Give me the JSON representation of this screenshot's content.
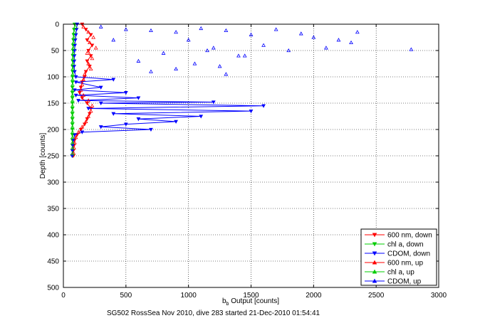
{
  "figure": {
    "caption": "SG502 RossSea Nov 2010, dive 283 started 21-Dec-2010 01:54:41"
  },
  "chart_data": {
    "type": "line",
    "title": "",
    "xlabel_main": "b",
    "xlabel_sub": "b",
    "xlabel_rest": " Output [counts]",
    "ylabel": "Depth [counts]",
    "xlim": [
      0,
      3000
    ],
    "ylim": [
      0,
      500
    ],
    "y_reversed": true,
    "grid": true,
    "legend_position": "bottom-right",
    "x_ticks": [
      0,
      500,
      1000,
      1500,
      2000,
      2500,
      3000
    ],
    "y_ticks": [
      0,
      50,
      100,
      150,
      200,
      250,
      300,
      350,
      400,
      450,
      500
    ],
    "x_tick_labels": [
      "0",
      "500",
      "1000",
      "1500",
      "2000",
      "2500",
      "3000"
    ],
    "y_tick_labels": [
      "0",
      "50",
      "100",
      "150",
      "200",
      "250",
      "300",
      "350",
      "400",
      "450",
      "500"
    ],
    "series": [
      {
        "name": "600 nm, down",
        "color": "#ff0000",
        "marker": "triangle-down",
        "line": true,
        "points": [
          [
            150,
            0
          ],
          [
            180,
            10
          ],
          [
            220,
            20
          ],
          [
            190,
            30
          ],
          [
            230,
            40
          ],
          [
            200,
            50
          ],
          [
            220,
            60
          ],
          [
            190,
            70
          ],
          [
            210,
            80
          ],
          [
            180,
            90
          ],
          [
            170,
            100
          ],
          [
            150,
            110
          ],
          [
            140,
            120
          ],
          [
            130,
            130
          ],
          [
            150,
            140
          ],
          [
            190,
            150
          ],
          [
            220,
            160
          ],
          [
            210,
            170
          ],
          [
            190,
            180
          ],
          [
            170,
            190
          ],
          [
            140,
            200
          ],
          [
            110,
            210
          ],
          [
            90,
            220
          ],
          [
            85,
            230
          ],
          [
            80,
            240
          ],
          [
            80,
            250
          ]
        ]
      },
      {
        "name": "chl a, down",
        "color": "#00cc00",
        "marker": "triangle-down",
        "line": true,
        "points": [
          [
            90,
            0
          ],
          [
            85,
            10
          ],
          [
            82,
            20
          ],
          [
            80,
            30
          ],
          [
            78,
            40
          ],
          [
            77,
            50
          ],
          [
            76,
            60
          ],
          [
            75,
            70
          ],
          [
            74,
            80
          ],
          [
            74,
            90
          ],
          [
            73,
            100
          ],
          [
            73,
            110
          ],
          [
            72,
            120
          ],
          [
            72,
            130
          ],
          [
            72,
            140
          ],
          [
            72,
            150
          ],
          [
            72,
            160
          ],
          [
            72,
            170
          ],
          [
            72,
            180
          ],
          [
            72,
            190
          ],
          [
            72,
            200
          ],
          [
            72,
            210
          ],
          [
            72,
            220
          ],
          [
            72,
            230
          ],
          [
            72,
            240
          ],
          [
            72,
            250
          ]
        ]
      },
      {
        "name": "CDOM, down",
        "color": "#0000ff",
        "marker": "triangle-down",
        "line": true,
        "points": [
          [
            110,
            0
          ],
          [
            105,
            10
          ],
          [
            100,
            20
          ],
          [
            95,
            30
          ],
          [
            92,
            40
          ],
          [
            90,
            50
          ],
          [
            88,
            60
          ],
          [
            87,
            70
          ],
          [
            86,
            80
          ],
          [
            90,
            90
          ],
          [
            100,
            100
          ],
          [
            400,
            105
          ],
          [
            100,
            110
          ],
          [
            300,
            120
          ],
          [
            90,
            125
          ],
          [
            500,
            130
          ],
          [
            100,
            135
          ],
          [
            600,
            140
          ],
          [
            120,
            145
          ],
          [
            1200,
            148
          ],
          [
            300,
            150
          ],
          [
            1600,
            155
          ],
          [
            200,
            160
          ],
          [
            1500,
            165
          ],
          [
            400,
            170
          ],
          [
            1100,
            175
          ],
          [
            600,
            180
          ],
          [
            900,
            185
          ],
          [
            500,
            190
          ],
          [
            300,
            195
          ],
          [
            700,
            200
          ],
          [
            150,
            205
          ],
          [
            90,
            210
          ],
          [
            80,
            220
          ],
          [
            75,
            230
          ],
          [
            72,
            240
          ],
          [
            70,
            250
          ]
        ]
      },
      {
        "name": "600 nm, up",
        "color": "#ff0000",
        "marker": "triangle-up",
        "line": false,
        "points": [
          [
            160,
            5
          ],
          [
            200,
            15
          ],
          [
            240,
            25
          ],
          [
            210,
            35
          ],
          [
            260,
            45
          ],
          [
            190,
            55
          ],
          [
            230,
            65
          ],
          [
            200,
            75
          ],
          [
            220,
            85
          ],
          [
            170,
            95
          ],
          [
            160,
            105
          ],
          [
            150,
            115
          ],
          [
            140,
            125
          ],
          [
            160,
            135
          ],
          [
            200,
            145
          ],
          [
            230,
            155
          ],
          [
            220,
            165
          ],
          [
            200,
            175
          ],
          [
            180,
            185
          ],
          [
            150,
            195
          ],
          [
            120,
            205
          ],
          [
            100,
            215
          ],
          [
            90,
            225
          ],
          [
            85,
            235
          ],
          [
            82,
            245
          ]
        ]
      },
      {
        "name": "chl a, up",
        "color": "#00cc00",
        "marker": "triangle-up",
        "line": false,
        "points": [
          [
            95,
            5
          ],
          [
            88,
            15
          ],
          [
            84,
            25
          ],
          [
            81,
            35
          ],
          [
            79,
            45
          ],
          [
            78,
            55
          ],
          [
            77,
            65
          ],
          [
            76,
            75
          ],
          [
            75,
            85
          ],
          [
            75,
            95
          ],
          [
            74,
            105
          ],
          [
            74,
            115
          ],
          [
            73,
            125
          ],
          [
            73,
            135
          ],
          [
            73,
            145
          ],
          [
            73,
            155
          ],
          [
            73,
            165
          ],
          [
            73,
            175
          ],
          [
            73,
            185
          ],
          [
            73,
            195
          ],
          [
            73,
            205
          ],
          [
            73,
            215
          ],
          [
            73,
            225
          ],
          [
            73,
            235
          ],
          [
            73,
            245
          ]
        ]
      },
      {
        "name": "CDOM, up",
        "color": "#0000ff",
        "marker": "triangle-up",
        "line": false,
        "points": [
          [
            300,
            5
          ],
          [
            500,
            10
          ],
          [
            700,
            12
          ],
          [
            900,
            15
          ],
          [
            1100,
            8
          ],
          [
            1300,
            12
          ],
          [
            1500,
            20
          ],
          [
            1700,
            10
          ],
          [
            1900,
            18
          ],
          [
            2000,
            25
          ],
          [
            2200,
            30
          ],
          [
            2300,
            35
          ],
          [
            2780,
            48
          ],
          [
            1000,
            30
          ],
          [
            1200,
            45
          ],
          [
            800,
            55
          ],
          [
            1400,
            60
          ],
          [
            600,
            70
          ],
          [
            1050,
            75
          ],
          [
            1250,
            80
          ],
          [
            900,
            85
          ],
          [
            700,
            90
          ],
          [
            1300,
            95
          ],
          [
            1450,
            60
          ],
          [
            1600,
            40
          ],
          [
            1800,
            50
          ],
          [
            2100,
            45
          ],
          [
            2350,
            15
          ],
          [
            400,
            30
          ],
          [
            1150,
            50
          ]
        ]
      }
    ]
  }
}
